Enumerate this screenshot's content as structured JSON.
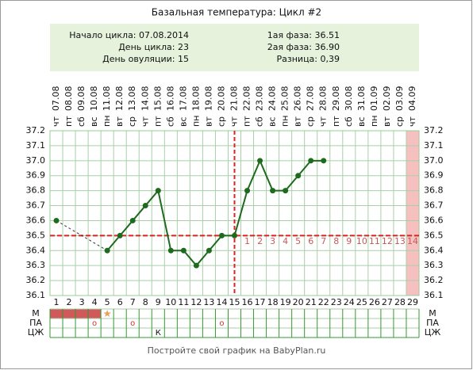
{
  "chart_data": {
    "type": "line",
    "title": "Базальная температура: Цикл #2",
    "info_left": [
      "Начало цикла: 07.08.2014",
      "День цикла: 23",
      "День овуляции: 15"
    ],
    "info_right": [
      "1ая фаза: 36.51",
      "2ая фаза: 36.90",
      "Разница: 0,39"
    ],
    "categories": [
      1,
      2,
      3,
      4,
      5,
      6,
      7,
      8,
      9,
      10,
      11,
      12,
      13,
      14,
      15,
      16,
      17,
      18,
      19,
      20,
      21,
      22,
      23,
      24,
      25,
      26,
      27,
      28,
      29
    ],
    "dates": [
      "07.08",
      "08.08",
      "09.08",
      "10.08",
      "11.08",
      "12.08",
      "13.08",
      "14.08",
      "15.08",
      "16.08",
      "17.08",
      "18.08",
      "19.08",
      "20.08",
      "21.08",
      "22.08",
      "23.08",
      "24.08",
      "25.08",
      "26.08",
      "27.08",
      "28.08",
      "29.08",
      "30.08",
      "31.08",
      "01.09",
      "02.09",
      "03.09",
      "04.09"
    ],
    "weekdays": [
      "чт",
      "пт",
      "сб",
      "вс",
      "пн",
      "вт",
      "ср",
      "чт",
      "пт",
      "сб",
      "вс",
      "пн",
      "вт",
      "ср",
      "чт",
      "пт",
      "сб",
      "вс",
      "пн",
      "вт",
      "ср",
      "чт",
      "пт",
      "сб",
      "вс",
      "пн",
      "вт",
      "ср",
      "чт"
    ],
    "values": [
      36.6,
      null,
      null,
      null,
      36.4,
      36.5,
      36.6,
      36.7,
      36.8,
      36.4,
      36.4,
      36.3,
      36.4,
      36.5,
      36.5,
      36.8,
      37.0,
      36.8,
      36.8,
      36.9,
      37.0,
      37.0,
      null,
      null,
      null,
      null,
      null,
      null,
      null
    ],
    "color": "#1e6b1e",
    "coverline": 36.5,
    "ovulation_day": 15,
    "phase_days": [
      null,
      null,
      null,
      null,
      null,
      null,
      null,
      null,
      null,
      null,
      null,
      null,
      null,
      null,
      null,
      1,
      2,
      3,
      4,
      5,
      6,
      7,
      8,
      9,
      10,
      11,
      12,
      13,
      14
    ],
    "highlight_day": 29,
    "ylim": [
      36.1,
      37.2
    ],
    "yticks": [
      36.1,
      36.2,
      36.3,
      36.4,
      36.5,
      36.6,
      36.7,
      36.8,
      36.9,
      {
        "value": 37.0,
        "label": "37.0"
      },
      37.1,
      37.2
    ],
    "grid": true,
    "rows": [
      {
        "label": "М",
        "filled_days": [
          1,
          2,
          3,
          4
        ],
        "star_days": [
          5
        ]
      },
      {
        "label": "ПА",
        "cells": [
          null,
          null,
          null,
          "о",
          null,
          null,
          "о",
          null,
          null,
          null,
          null,
          null,
          null,
          "о",
          null,
          null,
          null,
          null,
          null,
          null,
          null,
          null,
          null,
          null,
          null,
          null,
          null,
          null,
          null
        ]
      },
      {
        "label": "ЦЖ",
        "cells": [
          null,
          null,
          null,
          null,
          null,
          null,
          null,
          null,
          "К",
          null,
          null,
          null,
          null,
          null,
          null,
          null,
          null,
          null,
          null,
          null,
          null,
          null,
          null,
          null,
          null,
          null,
          null,
          null,
          null
        ]
      }
    ],
    "footer": "Постройте свой график на BabyPlan.ru"
  }
}
